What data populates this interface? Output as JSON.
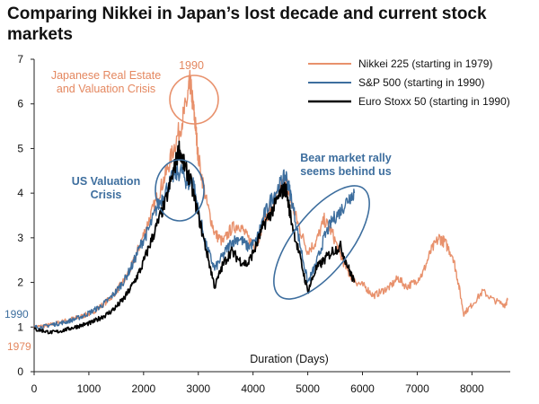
{
  "title": "Comparing Nikkei in Japan’s lost decade and current stock markets",
  "colors": {
    "nikkei": "#e8916c",
    "sp500": "#3d6e9e",
    "stoxx": "#000000"
  },
  "chart_data": {
    "type": "line",
    "title": "Comparing Nikkei in Japan’s lost decade and current stock markets",
    "xlabel": "Duration (Days)",
    "ylabel": "",
    "xlim": [
      0,
      8700
    ],
    "ylim": [
      0,
      7
    ],
    "xticks": [
      0,
      1000,
      2000,
      3000,
      4000,
      5000,
      6000,
      7000,
      8000
    ],
    "yticks": [
      0,
      1,
      2,
      3,
      4,
      5,
      6,
      7
    ],
    "grid": false,
    "legend_position": "top-right",
    "series": [
      {
        "name": "Nikkei 225   (starting in 1979)",
        "color": "#e8916c",
        "x": [
          0,
          150,
          300,
          450,
          600,
          750,
          900,
          1050,
          1200,
          1350,
          1500,
          1650,
          1800,
          1950,
          2100,
          2250,
          2400,
          2550,
          2700,
          2800,
          2850,
          2900,
          2950,
          3000,
          3150,
          3300,
          3450,
          3600,
          3750,
          3900,
          4050,
          4200,
          4350,
          4500,
          4600,
          4700,
          4850,
          5000,
          5150,
          5300,
          5450,
          5600,
          5750,
          5900,
          6050,
          6200,
          6350,
          6500,
          6650,
          6800,
          6950,
          7100,
          7250,
          7400,
          7500,
          7650,
          7750,
          7850,
          8000,
          8200,
          8400,
          8600,
          8650
        ],
        "y": [
          1.0,
          1.02,
          1.05,
          1.1,
          1.15,
          1.2,
          1.25,
          1.32,
          1.45,
          1.6,
          1.8,
          2.05,
          2.4,
          2.9,
          3.4,
          3.9,
          4.4,
          5.0,
          5.6,
          6.1,
          6.5,
          6.0,
          5.5,
          4.8,
          3.8,
          3.1,
          2.9,
          3.2,
          3.3,
          3.0,
          2.8,
          3.4,
          3.7,
          4.1,
          4.3,
          3.8,
          3.2,
          2.7,
          2.9,
          3.4,
          3.1,
          2.6,
          2.2,
          2.0,
          1.9,
          1.7,
          1.8,
          1.9,
          2.1,
          1.9,
          2.0,
          2.2,
          2.7,
          3.0,
          2.9,
          2.6,
          2.0,
          1.3,
          1.5,
          1.8,
          1.6,
          1.5,
          1.6
        ]
      },
      {
        "name": "S&P 500  (starting in 1990)",
        "color": "#3d6e9e",
        "x": [
          0,
          150,
          300,
          450,
          600,
          750,
          900,
          1050,
          1200,
          1350,
          1500,
          1650,
          1800,
          1950,
          2100,
          2250,
          2400,
          2550,
          2700,
          2800,
          2900,
          3000,
          3150,
          3300,
          3450,
          3600,
          3750,
          3900,
          4050,
          4200,
          4350,
          4500,
          4600,
          4700,
          4850,
          5000,
          5150,
          5300,
          5450,
          5600,
          5750,
          5850
        ],
        "y": [
          1.0,
          1.0,
          1.05,
          1.08,
          1.12,
          1.18,
          1.25,
          1.35,
          1.45,
          1.6,
          1.8,
          2.05,
          2.4,
          2.85,
          3.2,
          3.7,
          4.05,
          4.4,
          4.5,
          4.2,
          4.3,
          3.6,
          2.8,
          2.3,
          2.6,
          2.9,
          3.0,
          2.8,
          2.9,
          3.5,
          3.9,
          4.2,
          4.4,
          3.9,
          2.9,
          2.0,
          2.4,
          3.0,
          3.4,
          3.6,
          3.9,
          4.0
        ]
      },
      {
        "name": "Euro Stoxx  50 (starting in 1990)",
        "color": "#000000",
        "x": [
          0,
          150,
          300,
          450,
          600,
          750,
          900,
          1050,
          1200,
          1350,
          1500,
          1650,
          1800,
          1950,
          2100,
          2250,
          2400,
          2550,
          2650,
          2750,
          2850,
          3000,
          3150,
          3300,
          3450,
          3600,
          3750,
          3900,
          4050,
          4200,
          4350,
          4500,
          4600,
          4700,
          4850,
          5000,
          5150,
          5300,
          5450,
          5600,
          5750,
          5850
        ],
        "y": [
          0.95,
          0.92,
          0.88,
          0.9,
          0.95,
          1.0,
          1.05,
          1.1,
          1.2,
          1.3,
          1.45,
          1.65,
          1.95,
          2.3,
          2.8,
          3.3,
          3.8,
          4.5,
          5.0,
          4.6,
          4.3,
          3.5,
          2.7,
          1.9,
          2.4,
          2.7,
          2.5,
          2.4,
          2.8,
          3.3,
          3.6,
          4.0,
          4.1,
          3.4,
          2.6,
          1.8,
          2.3,
          2.5,
          2.7,
          2.8,
          2.3,
          2.0
        ]
      }
    ],
    "annotations": [
      {
        "text_lines": [
          "Japanese Real Estate",
          "and Valuation Crisis"
        ],
        "color": "#e4875f"
      },
      {
        "text_lines": [
          "1990"
        ],
        "color": "#e4875f"
      },
      {
        "text_lines": [
          "US Valuation",
          "Crisis"
        ],
        "color": "#3d6e9e"
      },
      {
        "text_lines": [
          "Bear market rally",
          "seems behind us"
        ],
        "color": "#3d6e9e"
      },
      {
        "text_lines": [
          "1990"
        ],
        "color": "#3d6e9e"
      },
      {
        "text_lines": [
          "1979"
        ],
        "color": "#e4875f"
      }
    ]
  }
}
